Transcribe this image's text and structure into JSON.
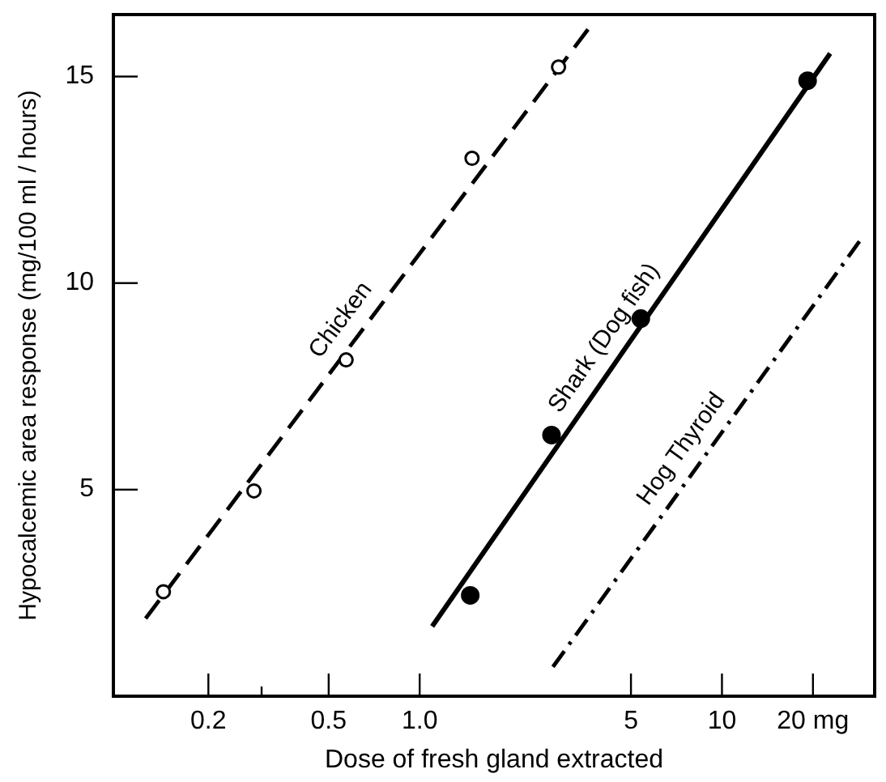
{
  "chart_data": {
    "type": "line",
    "xlabel": "Dose of fresh gland extracted",
    "ylabel": "Hypocalcemic area response (mg/100 ml / hours)",
    "log": "x",
    "grid": false,
    "xlim": [
      0.097,
      32
    ],
    "xticks": [
      0.2,
      {
        "value": 0.3,
        "label": null
      },
      0.5,
      {
        "value": 1,
        "label": "1.0"
      },
      5,
      10,
      {
        "value": 20,
        "label": "20 mg"
      }
    ],
    "ylim": [
      0,
      16.5
    ],
    "yticks": [
      5,
      10,
      15
    ],
    "series": [
      {
        "name": "Chicken",
        "line_style": "dashed",
        "color": "#000000",
        "x": [
          0.124,
          3.68
        ],
        "values": [
          1.88,
          16.23
        ]
      },
      {
        "type": "scatter",
        "marker": "circle_open",
        "color": "#000000",
        "x": [
          0.142,
          0.283,
          0.571,
          1.49,
          2.88
        ],
        "values": [
          2.53,
          4.97,
          8.14,
          13.02,
          15.23
        ]
      },
      {
        "name": "Shark (Dog fish)",
        "line_style": "solid",
        "color": "#000000",
        "x": [
          1.1,
          22.8
        ],
        "values": [
          1.69,
          15.56
        ]
      },
      {
        "type": "scatter",
        "marker": "circle",
        "color": "#000000",
        "x": [
          1.47,
          2.73,
          5.39,
          19.2
        ],
        "values": [
          2.44,
          6.32,
          9.14,
          14.9
        ]
      },
      {
        "name": "Hog Thyroid",
        "line_style": "dashdot",
        "color": "#000000",
        "x": [
          2.76,
          28.5
        ],
        "values": [
          0.71,
          11.01
        ]
      }
    ]
  }
}
